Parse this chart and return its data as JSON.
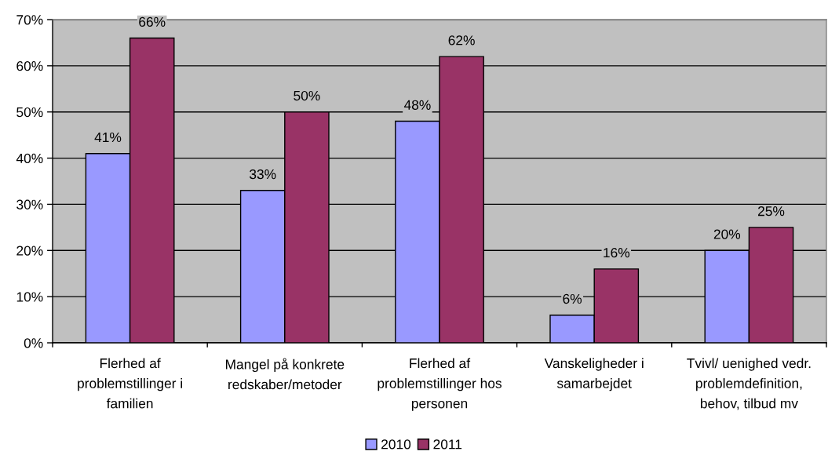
{
  "chart_data": {
    "type": "bar",
    "categories": [
      "Flerhed af\nproblemstillinger i\nfamilien",
      "Mangel på konkrete\nredskaber/metoder",
      "Flerhed af\nproblemstillinger hos\npersonen",
      "Vanskeligheder i\nsamarbejdet",
      "Tvivl/ uenighed vedr.\nproblemdefinition,\nbehov, tilbud mv"
    ],
    "series": [
      {
        "name": "2010",
        "color": "#9999ff",
        "values": [
          41,
          33,
          48,
          6,
          20
        ],
        "value_labels": [
          "41%",
          "33%",
          "48%",
          "6%",
          "20%"
        ]
      },
      {
        "name": "2011",
        "color": "#993366",
        "values": [
          66,
          50,
          62,
          16,
          25
        ],
        "value_labels": [
          "66%",
          "50%",
          "62%",
          "16%",
          "25%"
        ]
      }
    ],
    "ylim": [
      0,
      70
    ],
    "yticks": [
      {
        "value": 0,
        "label": "0%"
      },
      {
        "value": 10,
        "label": "10%"
      },
      {
        "value": 20,
        "label": "20%"
      },
      {
        "value": 30,
        "label": "30%"
      },
      {
        "value": 40,
        "label": "40%"
      },
      {
        "value": 50,
        "label": "50%"
      },
      {
        "value": 60,
        "label": "60%"
      },
      {
        "value": 70,
        "label": "70%"
      }
    ],
    "grid": "y",
    "legend": "bottom"
  }
}
